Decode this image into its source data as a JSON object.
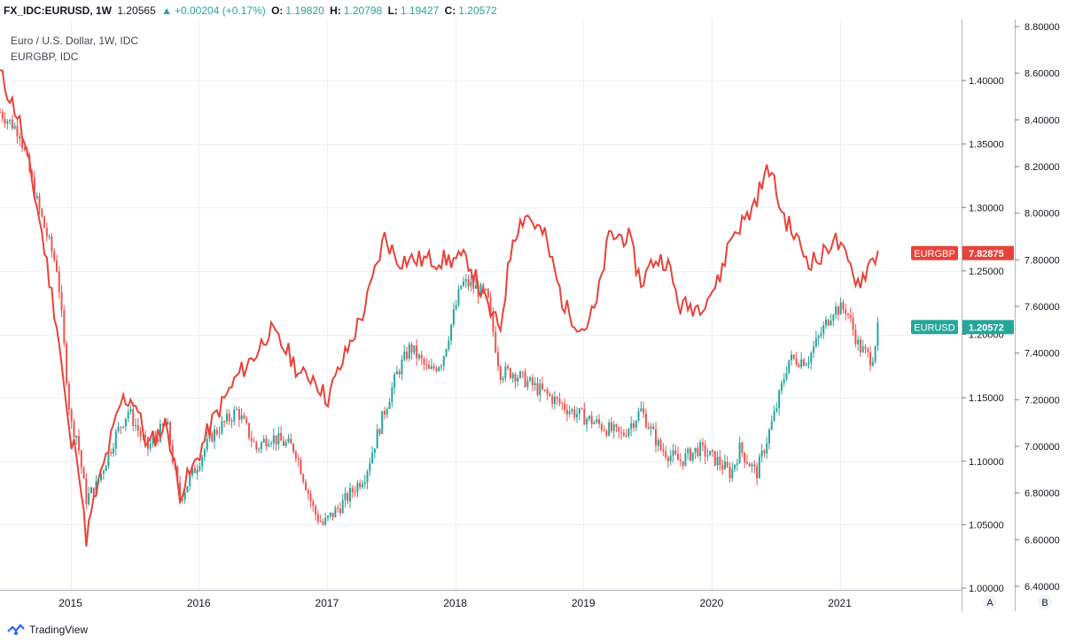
{
  "header": {
    "symbol": "FX_IDC:EURUSD, 1W",
    "last": "1.20565",
    "change": "+0.00204 (+0.17%)",
    "open_label": "O:",
    "open": "1.19820",
    "high_label": "H:",
    "high": "1.20798",
    "low_label": "L:",
    "low": "1.19427",
    "close_label": "C:",
    "close": "1.20572"
  },
  "legend": {
    "main": "Euro / U.S. Dollar, 1W, IDC",
    "compare": "EURGBP, IDC"
  },
  "colors": {
    "up": "#26a69a",
    "down": "#ef5350",
    "compare": "#e8433a",
    "grid": "#eef0f3"
  },
  "chart_data": {
    "type": "line",
    "title": "Euro / U.S. Dollar, 1W, IDC",
    "xlabel": "",
    "ylabel": "",
    "x_range": [
      2014.45,
      2021.95
    ],
    "xticks": [
      "2015",
      "2016",
      "2017",
      "2018",
      "2019",
      "2020",
      "2021"
    ],
    "right_axis": {
      "label": "A",
      "ylim": [
        1.0,
        1.44
      ],
      "ticks": [
        1.4,
        1.35,
        1.3,
        1.25,
        1.2,
        1.15,
        1.1,
        1.05,
        1.0
      ],
      "tick_labels": [
        "1.40000",
        "1.35000",
        "1.30000",
        "1.25000",
        "1.20000",
        "1.15000",
        "1.10000",
        "1.05000",
        "1.00000"
      ]
    },
    "left_scale": {
      "label": "B",
      "ylim": [
        6.4,
        8.8
      ],
      "ticks": [
        8.8,
        8.6,
        8.4,
        8.2,
        8.0,
        7.8,
        7.6,
        7.4,
        7.2,
        7.0,
        6.8,
        6.6,
        6.4
      ],
      "tick_labels": [
        "8.80000",
        "8.60000",
        "8.40000",
        "8.20000",
        "8.00000",
        "7.80000",
        "7.60000",
        "7.40000",
        "7.20000",
        "7.00000",
        "6.80000",
        "6.60000",
        "6.40000"
      ]
    },
    "series": [
      {
        "name": "EURUSD",
        "style": "candles",
        "axis": "A",
        "last": 1.20572,
        "last_label": "1.20572",
        "x": [
          2014.45,
          2014.6,
          2014.75,
          2014.9,
          2015.0,
          2015.05,
          2015.12,
          2015.2,
          2015.35,
          2015.45,
          2015.6,
          2015.75,
          2015.85,
          2015.95,
          2016.1,
          2016.3,
          2016.45,
          2016.55,
          2016.75,
          2016.9,
          2016.97,
          2017.15,
          2017.3,
          2017.45,
          2017.55,
          2017.65,
          2017.8,
          2017.9,
          2018.05,
          2018.1,
          2018.25,
          2018.35,
          2018.45,
          2018.6,
          2018.75,
          2018.9,
          2019.1,
          2019.3,
          2019.45,
          2019.6,
          2019.75,
          2019.9,
          2020.05,
          2020.15,
          2020.22,
          2020.35,
          2020.5,
          2020.6,
          2020.75,
          2020.95,
          2021.05,
          2021.15,
          2021.25,
          2021.3
        ],
        "values": [
          1.375,
          1.36,
          1.3,
          1.25,
          1.13,
          1.12,
          1.07,
          1.08,
          1.12,
          1.14,
          1.11,
          1.13,
          1.07,
          1.09,
          1.12,
          1.14,
          1.11,
          1.12,
          1.11,
          1.06,
          1.05,
          1.07,
          1.09,
          1.14,
          1.17,
          1.19,
          1.17,
          1.18,
          1.24,
          1.24,
          1.23,
          1.17,
          1.17,
          1.16,
          1.15,
          1.14,
          1.13,
          1.12,
          1.14,
          1.11,
          1.1,
          1.11,
          1.1,
          1.09,
          1.11,
          1.09,
          1.14,
          1.18,
          1.18,
          1.22,
          1.22,
          1.19,
          1.18,
          1.20572
        ]
      },
      {
        "name": "EURGBP",
        "style": "line",
        "axis": "B",
        "last": 7.82875,
        "last_label": "7.82875",
        "x": [
          2014.45,
          2014.6,
          2014.75,
          2014.9,
          2015.0,
          2015.05,
          2015.12,
          2015.2,
          2015.3,
          2015.4,
          2015.5,
          2015.6,
          2015.75,
          2015.85,
          2015.95,
          2016.1,
          2016.2,
          2016.3,
          2016.45,
          2016.55,
          2016.7,
          2016.8,
          2016.9,
          2017.0,
          2017.15,
          2017.3,
          2017.45,
          2017.55,
          2017.7,
          2017.8,
          2017.9,
          2018.0,
          2018.1,
          2018.25,
          2018.35,
          2018.45,
          2018.55,
          2018.7,
          2018.85,
          2019.0,
          2019.1,
          2019.2,
          2019.35,
          2019.45,
          2019.55,
          2019.65,
          2019.75,
          2019.9,
          2020.05,
          2020.15,
          2020.3,
          2020.45,
          2020.55,
          2020.65,
          2020.75,
          2020.85,
          2020.95,
          2021.05,
          2021.15,
          2021.25,
          2021.3
        ],
        "values": [
          8.6,
          8.4,
          8.0,
          7.5,
          7.0,
          7.0,
          6.6,
          6.8,
          7.0,
          7.2,
          7.2,
          7.0,
          7.1,
          6.8,
          6.9,
          7.1,
          7.2,
          7.3,
          7.4,
          7.5,
          7.4,
          7.3,
          7.3,
          7.2,
          7.4,
          7.6,
          7.9,
          7.8,
          7.8,
          7.8,
          7.8,
          7.8,
          7.8,
          7.6,
          7.5,
          7.9,
          8.0,
          7.9,
          7.6,
          7.5,
          7.6,
          7.9,
          7.9,
          7.7,
          7.8,
          7.8,
          7.6,
          7.6,
          7.7,
          7.9,
          8.0,
          8.2,
          8.0,
          7.9,
          7.8,
          7.8,
          7.9,
          7.8,
          7.7,
          7.8,
          7.82875
        ]
      }
    ]
  },
  "footer": {
    "brand": "TradingView"
  }
}
